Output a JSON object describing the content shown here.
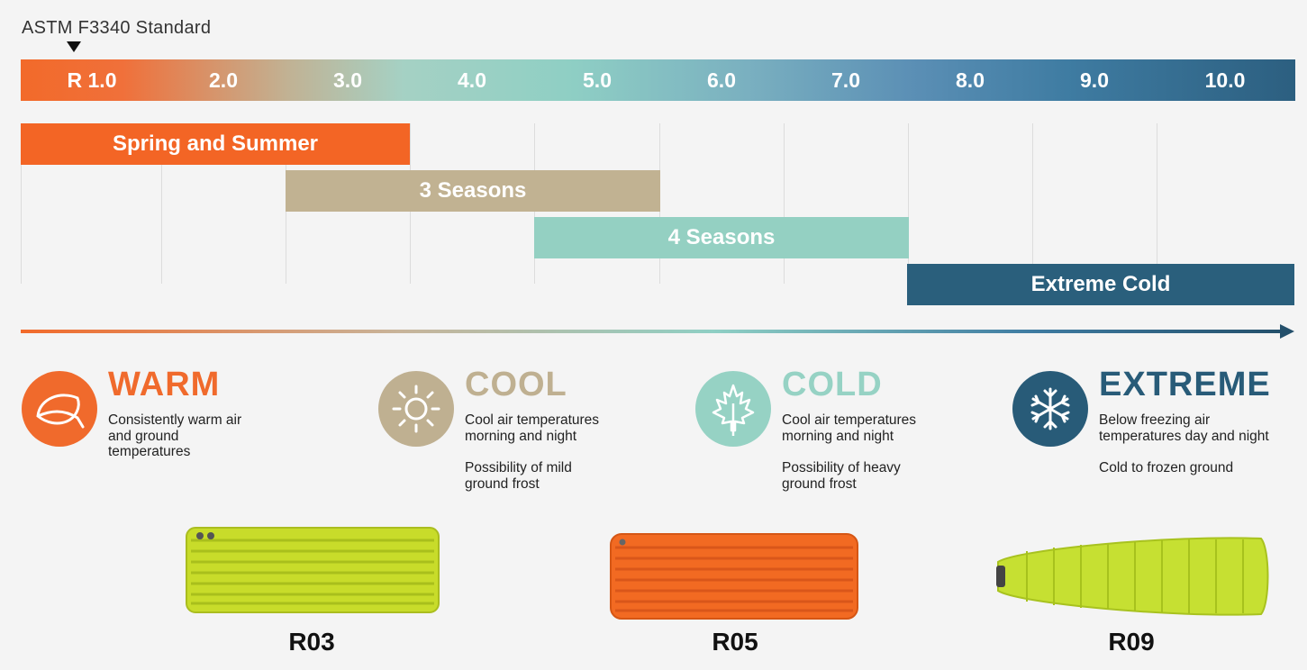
{
  "standard_label": "ASTM F3340 Standard",
  "scale": {
    "ticks": [
      "R 1.0",
      "2.0",
      "3.0",
      "4.0",
      "5.0",
      "6.0",
      "7.0",
      "8.0",
      "9.0",
      "10.0"
    ]
  },
  "bands": [
    {
      "label": "Spring and Summer",
      "color": "#f36525"
    },
    {
      "label": "3 Seasons",
      "color": "#c1b292"
    },
    {
      "label": "4 Seasons",
      "color": "#94d0c2"
    },
    {
      "label": "Extreme Cold",
      "color": "#2a5f7c"
    }
  ],
  "categories": [
    {
      "title": "WARM",
      "color": "#f06a2c",
      "icon": "leaf-icon",
      "desc": "Consistently warm air\nand ground\ntemperatures",
      "desc2": ""
    },
    {
      "title": "COOL",
      "color": "#bfb091",
      "icon": "sun-icon",
      "desc": "Cool air temperatures\nmorning and night",
      "desc2": "Possibility of mild\nground frost"
    },
    {
      "title": "COLD",
      "color": "#96d2c4",
      "icon": "maple-leaf-icon",
      "desc": "Cool air temperatures\nmorning and night",
      "desc2": "Possibility of heavy\nground frost"
    },
    {
      "title": "EXTREME",
      "color": "#285b78",
      "icon": "snowflake-icon",
      "desc": "Below freezing air\ntemperatures day and night",
      "desc2": "Cold to frozen ground"
    }
  ],
  "pads": [
    {
      "label": "R03",
      "color": "#c8dc2a",
      "image": "yellow-rectangular-sleeping-pad"
    },
    {
      "label": "R05",
      "color": "#f26a22",
      "image": "orange-rectangular-sleeping-pad"
    },
    {
      "label": "R09",
      "color": "#c6e032",
      "image": "lime-tapered-sleeping-pad"
    }
  ]
}
